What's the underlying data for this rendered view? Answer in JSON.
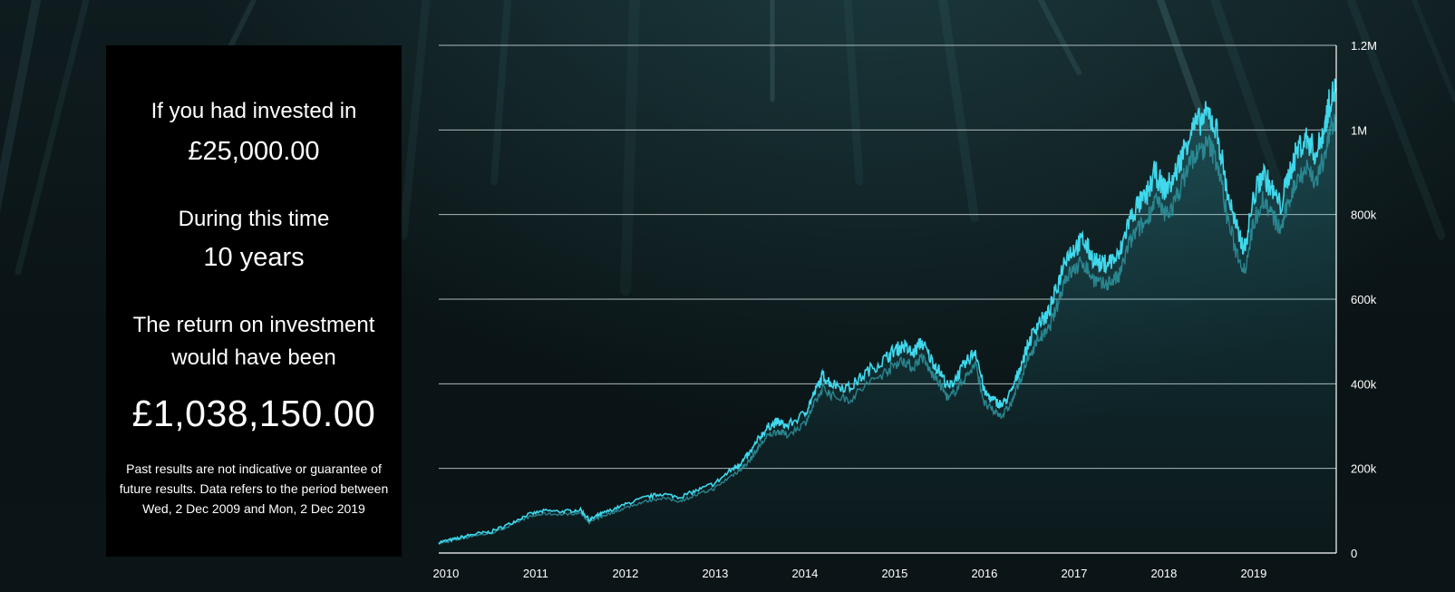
{
  "summary": {
    "invested_label": "If you had invested in",
    "invested_value": "£25,000.00",
    "duration_label": "During this time",
    "duration_value": "10 years",
    "return_label_line1": "The return on investment",
    "return_label_line2": "would have been",
    "return_value": "£1,038,150.00",
    "disclaimer": "Past results are not indicative or guarantee of future results. Data refers to the period between Wed, 2 Dec 2009 and Mon, 2 Dec 2019"
  },
  "colors": {
    "line": "#3fd8ec",
    "shadow_line": "#2b8f99",
    "grid": "#c9d4d6",
    "panel_bg": "#000000",
    "text": "#ffffff"
  },
  "chart_data": {
    "type": "line",
    "title": "",
    "xlabel": "",
    "ylabel": "",
    "ylim": [
      0,
      1200000
    ],
    "yticks": [
      0,
      200000,
      400000,
      600000,
      800000,
      1000000,
      1200000
    ],
    "ytick_labels": [
      "0",
      "200k",
      "400k",
      "600k",
      "800k",
      "1M",
      "1.2M"
    ],
    "xticks": [
      2010,
      2011,
      2012,
      2013,
      2014,
      2015,
      2016,
      2017,
      2018,
      2019
    ],
    "xtick_labels": [
      "2010",
      "2011",
      "2012",
      "2013",
      "2014",
      "2015",
      "2016",
      "2017",
      "2018",
      "2019"
    ],
    "xlim": [
      2009.92,
      2019.92
    ],
    "y_axis_position": "right",
    "grid": "horizontal",
    "series": [
      {
        "values_x": [
          2009.92,
          2010.1,
          2010.3,
          2010.5,
          2010.7,
          2010.9,
          2011.1,
          2011.3,
          2011.5,
          2011.6,
          2011.7,
          2011.8,
          2012.0,
          2012.2,
          2012.4,
          2012.6,
          2012.8,
          2013.0,
          2013.2,
          2013.3,
          2013.4,
          2013.5,
          2013.6,
          2013.7,
          2013.8,
          2014.0,
          2014.1,
          2014.2,
          2014.3,
          2014.5,
          2014.7,
          2014.9,
          2015.0,
          2015.1,
          2015.2,
          2015.3,
          2015.4,
          2015.5,
          2015.6,
          2015.7,
          2015.8,
          2015.9,
          2016.0,
          2016.1,
          2016.2,
          2016.3,
          2016.4,
          2016.5,
          2016.6,
          2016.7,
          2016.8,
          2016.9,
          2017.0,
          2017.1,
          2017.2,
          2017.3,
          2017.4,
          2017.5,
          2017.6,
          2017.7,
          2017.8,
          2017.9,
          2018.0,
          2018.1,
          2018.2,
          2018.3,
          2018.4,
          2018.5,
          2018.6,
          2018.7,
          2018.8,
          2018.9,
          2019.0,
          2019.1,
          2019.2,
          2019.3,
          2019.4,
          2019.5,
          2019.6,
          2019.7,
          2019.8,
          2019.85,
          2019.92
        ],
        "values": [
          25000,
          33000,
          44000,
          50000,
          68000,
          90000,
          100000,
          98000,
          102000,
          78000,
          90000,
          98000,
          115000,
          130000,
          140000,
          132000,
          148000,
          165000,
          200000,
          215000,
          240000,
          275000,
          300000,
          310000,
          300000,
          330000,
          375000,
          420000,
          400000,
          390000,
          430000,
          460000,
          480000,
          490000,
          470000,
          500000,
          460000,
          430000,
          390000,
          420000,
          450000,
          480000,
          380000,
          360000,
          350000,
          380000,
          440000,
          500000,
          545000,
          560000,
          620000,
          700000,
          720000,
          740000,
          700000,
          680000,
          690000,
          700000,
          780000,
          820000,
          840000,
          900000,
          860000,
          880000,
          940000,
          1000000,
          1020000,
          1040000,
          990000,
          860000,
          770000,
          720000,
          840000,
          900000,
          860000,
          820000,
          900000,
          960000,
          980000,
          940000,
          1020000,
          1070000,
          1100000
        ]
      }
    ]
  }
}
